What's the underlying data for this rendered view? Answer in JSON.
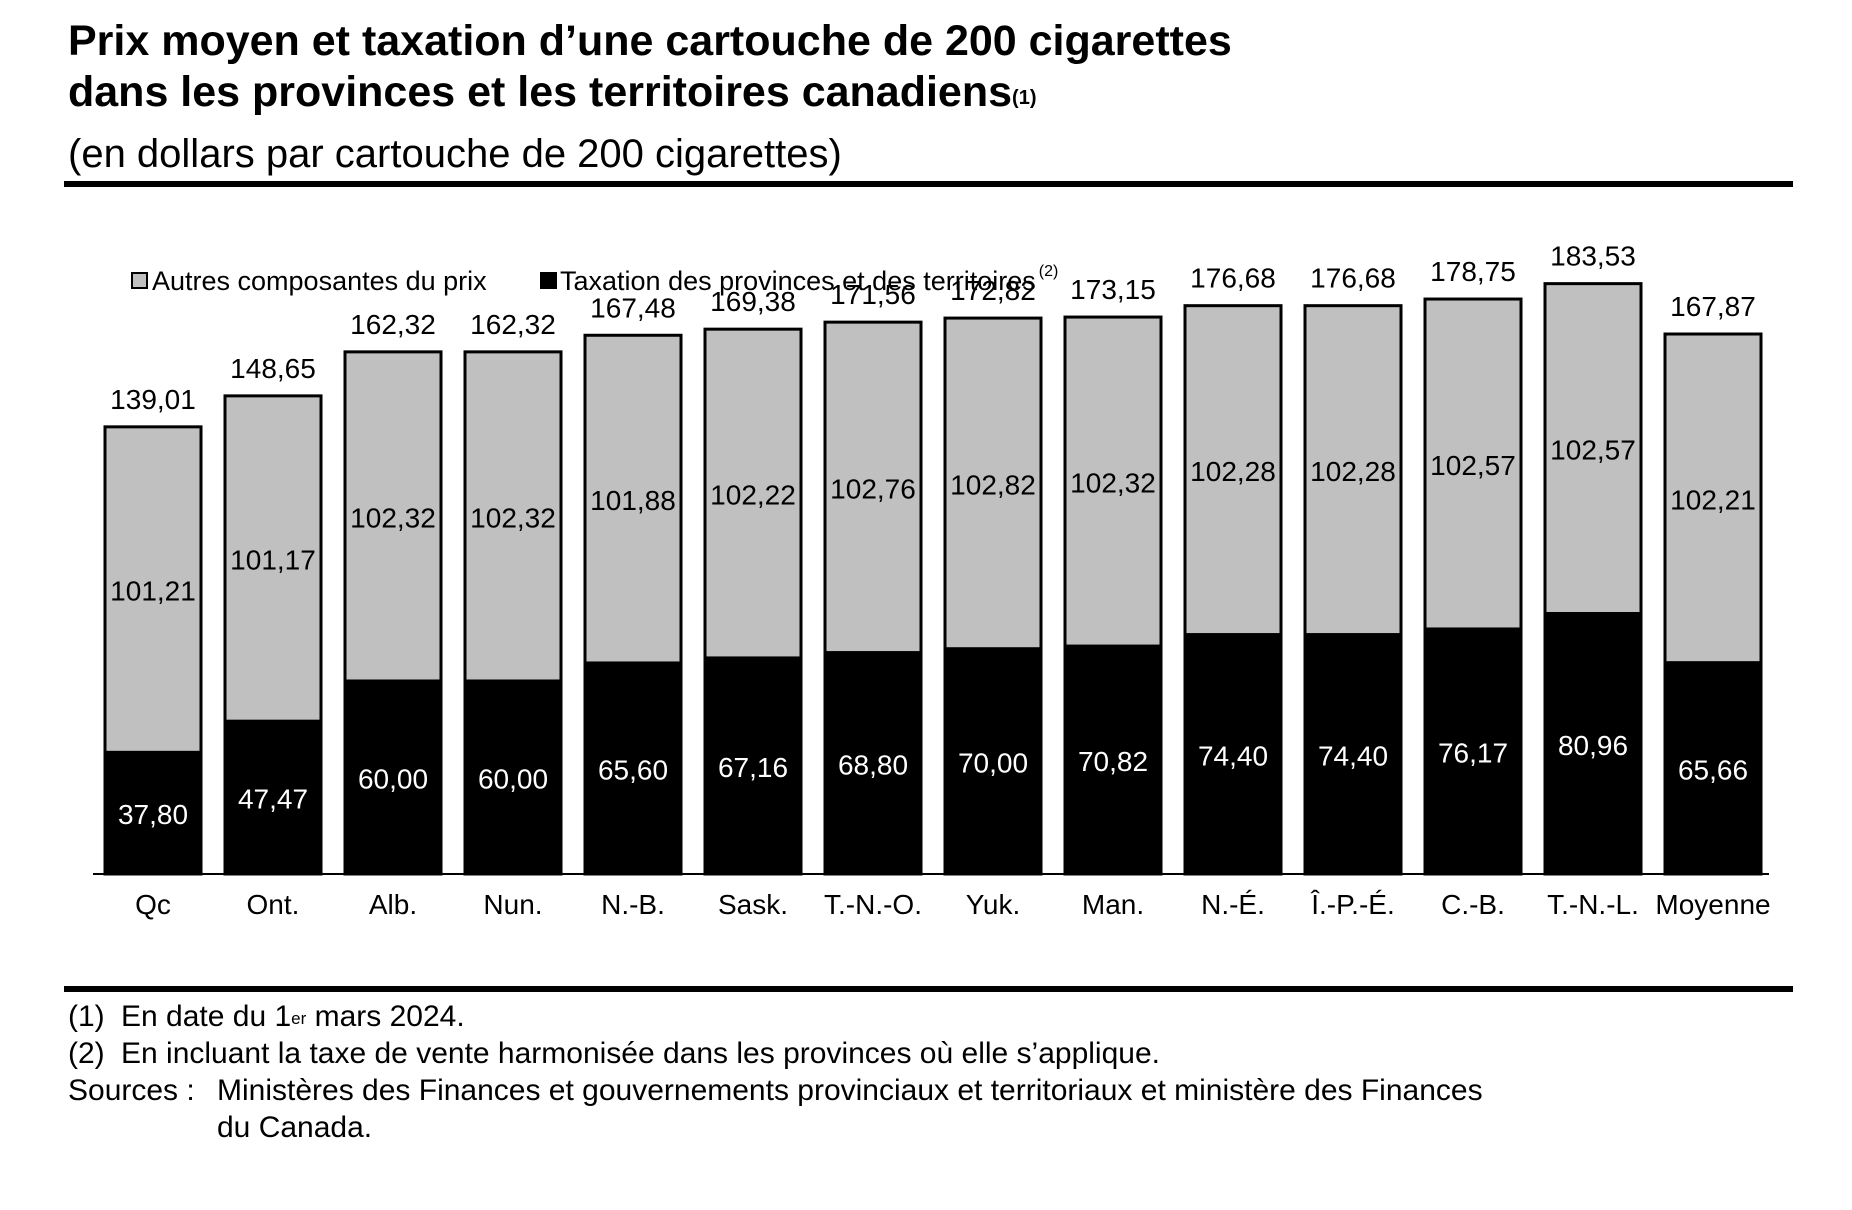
{
  "title": {
    "line1": "Prix moyen et taxation d’une cartouche de 200 cigarettes",
    "line2": "dans les provinces et les territoires canadiens",
    "note_ref": "(1)"
  },
  "subtitle": "(en dollars par cartouche de 200 cigarettes)",
  "colors": {
    "other": "#c0c0c0",
    "tax": "#000000",
    "outline": "#000000"
  },
  "chart_data": {
    "type": "bar",
    "stacked": true,
    "categories": [
      "Qc",
      "Ont.",
      "Alb.",
      "Nun.",
      "N.-B.",
      "Sask.",
      "T.-N.-O.",
      "Yuk.",
      "Man.",
      "N.-É.",
      "Î.-P.-É.",
      "C.-B.",
      "T.-N.-L.",
      "Moyenne"
    ],
    "series": [
      {
        "name": "Taxation des provinces et des territoires",
        "note_ref": "(2)",
        "color": "#000000",
        "values": [
          "37,80",
          "47,47",
          "60,00",
          "60,00",
          "65,60",
          "67,16",
          "68,80",
          "70,00",
          "70,82",
          "74,40",
          "74,40",
          "76,17",
          "80,96",
          "65,66"
        ]
      },
      {
        "name": "Autres composantes du prix",
        "color": "#c0c0c0",
        "values": [
          "101,21",
          "101,17",
          "102,32",
          "102,32",
          "101,88",
          "102,22",
          "102,76",
          "102,82",
          "102,32",
          "102,28",
          "102,28",
          "102,57",
          "102,57",
          "102,21"
        ]
      }
    ],
    "totals": [
      "139,01",
      "148,65",
      "162,32",
      "162,32",
      "167,48",
      "169,38",
      "171,56",
      "172,82",
      "173,15",
      "176,68",
      "176,68",
      "178,75",
      "183,53",
      "167,87"
    ],
    "legend_order": [
      1,
      0
    ],
    "legend_position": "top-left",
    "ylim": [
      0,
      190
    ],
    "y_axis_visible": false,
    "grid": false
  },
  "notes": [
    {
      "key": "(1)",
      "text_before": "En date du 1",
      "sup": "er",
      "text_after": " mars 2024."
    },
    {
      "key": "(2)",
      "text": "En incluant la taxe de vente harmonisée dans les provinces où elle s’applique."
    }
  ],
  "sources": {
    "key": "Sources :",
    "line1": "Ministères des Finances et gouvernements provinciaux et territoriaux et ministère des Finances",
    "line2": "du Canada."
  }
}
